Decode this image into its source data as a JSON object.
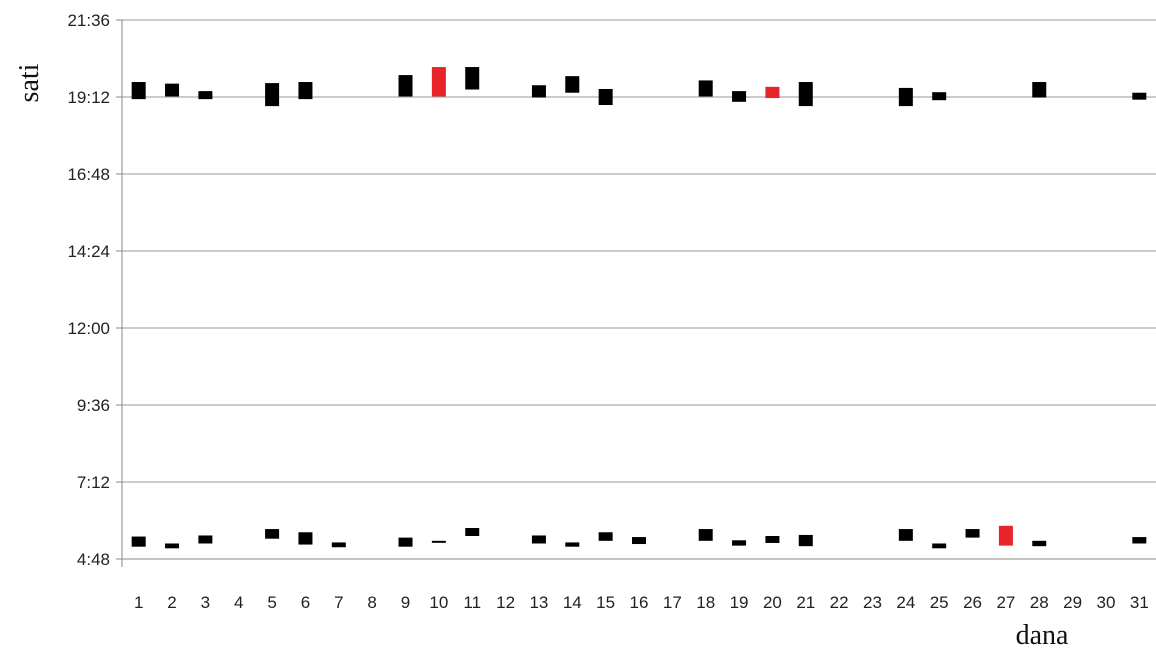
{
  "chart_data": {
    "type": "bar",
    "subtype": "floating-range",
    "title": "",
    "xlabel": "dana",
    "ylabel": "sati",
    "y_tick_labels": [
      "4:48",
      "7:12",
      "9:36",
      "12:00",
      "14:24",
      "16:48",
      "19:12",
      "21:36"
    ],
    "ylim_minutes": [
      288,
      1296
    ],
    "grid": "horizontal",
    "legend": "none",
    "categories": [
      "1",
      "2",
      "3",
      "4",
      "5",
      "6",
      "7",
      "8",
      "9",
      "10",
      "11",
      "12",
      "13",
      "14",
      "15",
      "16",
      "17",
      "18",
      "19",
      "20",
      "21",
      "22",
      "23",
      "24",
      "25",
      "26",
      "27",
      "28",
      "29",
      "30",
      "31"
    ],
    "colors": {
      "normal": "#000000",
      "highlight": "#e8232a",
      "grid": "#9a9a9a",
      "axis": "#888888"
    },
    "evening_ranges": [
      {
        "day": "1",
        "start": "19:08",
        "end": "19:40",
        "highlight": false
      },
      {
        "day": "2",
        "start": "19:13",
        "end": "19:37",
        "highlight": false
      },
      {
        "day": "3",
        "start": "19:08",
        "end": "19:23",
        "highlight": false
      },
      {
        "day": "5",
        "start": "18:55",
        "end": "19:38",
        "highlight": false
      },
      {
        "day": "6",
        "start": "19:08",
        "end": "19:40",
        "highlight": false
      },
      {
        "day": "9",
        "start": "19:13",
        "end": "19:53",
        "highlight": false
      },
      {
        "day": "10",
        "start": "19:13",
        "end": "20:08",
        "highlight": true
      },
      {
        "day": "11",
        "start": "19:26",
        "end": "20:08",
        "highlight": false
      },
      {
        "day": "13",
        "start": "19:11",
        "end": "19:34",
        "highlight": false
      },
      {
        "day": "14",
        "start": "19:20",
        "end": "19:51",
        "highlight": false
      },
      {
        "day": "15",
        "start": "18:57",
        "end": "19:27",
        "highlight": false
      },
      {
        "day": "18",
        "start": "19:13",
        "end": "19:43",
        "highlight": false
      },
      {
        "day": "19",
        "start": "19:03",
        "end": "19:23",
        "highlight": false
      },
      {
        "day": "20",
        "start": "19:10",
        "end": "19:31",
        "highlight": true
      },
      {
        "day": "21",
        "start": "18:55",
        "end": "19:40",
        "highlight": false
      },
      {
        "day": "24",
        "start": "18:55",
        "end": "19:29",
        "highlight": false
      },
      {
        "day": "25",
        "start": "19:06",
        "end": "19:21",
        "highlight": false
      },
      {
        "day": "28",
        "start": "19:11",
        "end": "19:40",
        "highlight": false
      },
      {
        "day": "31",
        "start": "19:07",
        "end": "19:20",
        "highlight": false
      }
    ],
    "morning_ranges": [
      {
        "day": "1",
        "start": "5:11",
        "end": "5:30",
        "highlight": false
      },
      {
        "day": "2",
        "start": "5:08",
        "end": "5:17",
        "highlight": false
      },
      {
        "day": "3",
        "start": "5:17",
        "end": "5:32",
        "highlight": false
      },
      {
        "day": "5",
        "start": "5:26",
        "end": "5:44",
        "highlight": false
      },
      {
        "day": "6",
        "start": "5:15",
        "end": "5:38",
        "highlight": false
      },
      {
        "day": "7",
        "start": "5:10",
        "end": "5:19",
        "highlight": false
      },
      {
        "day": "9",
        "start": "5:11",
        "end": "5:28",
        "highlight": false
      },
      {
        "day": "10",
        "start": "5:20",
        "end": "5:22",
        "highlight": false
      },
      {
        "day": "11",
        "start": "5:31",
        "end": "5:46",
        "highlight": false
      },
      {
        "day": "13",
        "start": "5:17",
        "end": "5:32",
        "highlight": false
      },
      {
        "day": "14",
        "start": "5:11",
        "end": "5:19",
        "highlight": false
      },
      {
        "day": "15",
        "start": "5:22",
        "end": "5:38",
        "highlight": false
      },
      {
        "day": "16",
        "start": "5:16",
        "end": "5:29",
        "highlight": false
      },
      {
        "day": "18",
        "start": "5:22",
        "end": "5:44",
        "highlight": false
      },
      {
        "day": "19",
        "start": "5:13",
        "end": "5:23",
        "highlight": false
      },
      {
        "day": "20",
        "start": "5:18",
        "end": "5:31",
        "highlight": false
      },
      {
        "day": "21",
        "start": "5:12",
        "end": "5:33",
        "highlight": false
      },
      {
        "day": "24",
        "start": "5:22",
        "end": "5:44",
        "highlight": false
      },
      {
        "day": "25",
        "start": "5:08",
        "end": "5:17",
        "highlight": false
      },
      {
        "day": "26",
        "start": "5:28",
        "end": "5:44",
        "highlight": false
      },
      {
        "day": "27",
        "start": "5:13",
        "end": "5:50",
        "highlight": true
      },
      {
        "day": "28",
        "start": "5:12",
        "end": "5:22",
        "highlight": false
      },
      {
        "day": "31",
        "start": "5:17",
        "end": "5:29",
        "highlight": false
      }
    ]
  }
}
